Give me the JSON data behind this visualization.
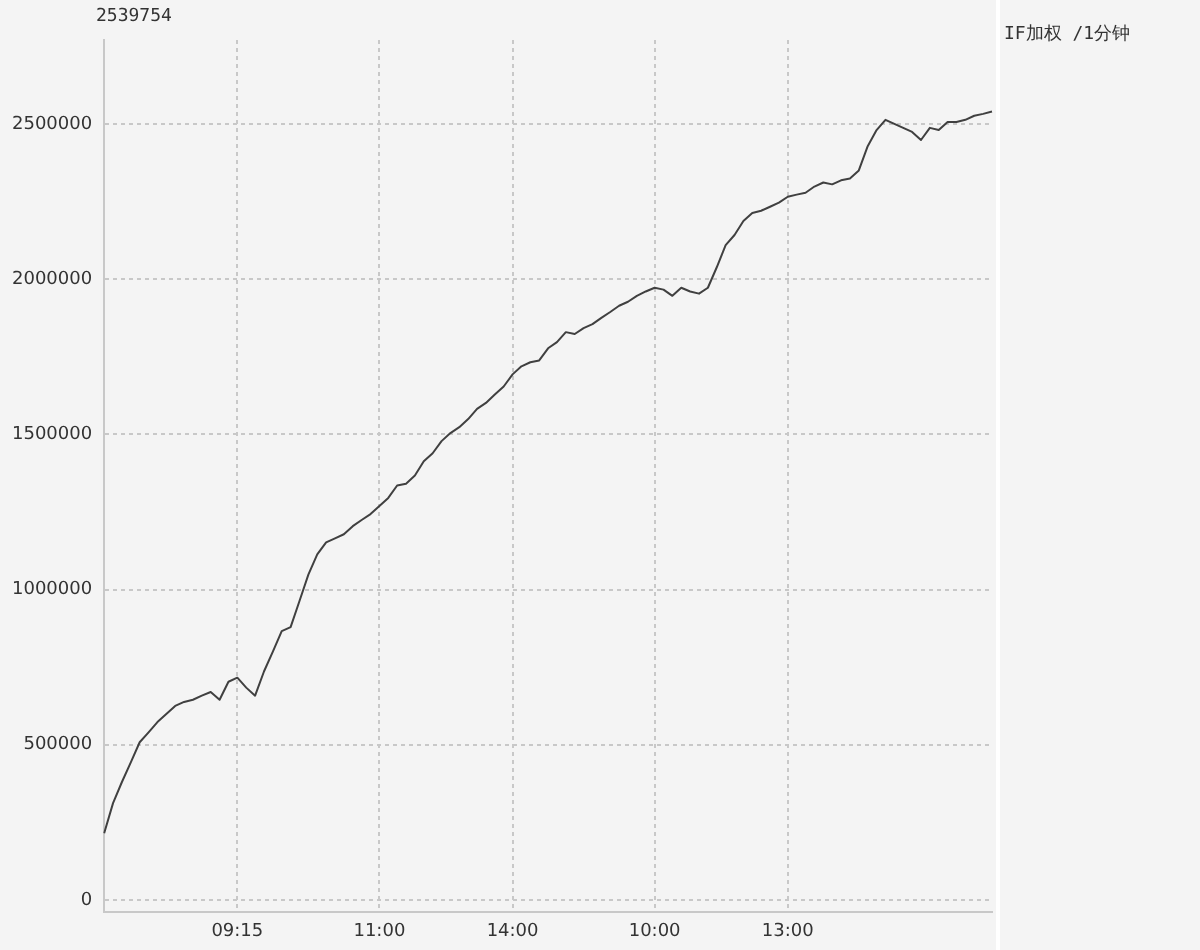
{
  "chart_data": {
    "type": "line",
    "categories": [
      null,
      null,
      null,
      null,
      null,
      null,
      null,
      null,
      null,
      null,
      null,
      null,
      null,
      null,
      null,
      "09:15",
      null,
      null,
      null,
      null,
      null,
      null,
      null,
      null,
      null,
      null,
      null,
      null,
      null,
      null,
      null,
      "11:00",
      null,
      null,
      null,
      null,
      null,
      null,
      null,
      null,
      null,
      null,
      null,
      null,
      null,
      null,
      "14:00",
      null,
      null,
      null,
      null,
      null,
      null,
      null,
      null,
      null,
      null,
      null,
      null,
      null,
      null,
      null,
      "10:00",
      null,
      null,
      null,
      null,
      null,
      null,
      null,
      null,
      null,
      null,
      null,
      null,
      null,
      null,
      "13:00",
      null,
      null,
      null,
      null,
      null,
      null,
      null,
      null,
      null,
      null,
      null,
      null,
      null,
      null,
      null,
      null,
      null,
      null,
      null,
      null,
      null,
      null,
      null
    ],
    "series": [
      {
        "color": "#404040",
        "values": [
          215000,
          312000,
          380000,
          443000,
          508000,
          540000,
          573000,
          599000,
          625000,
          638000,
          645000,
          658000,
          670000,
          645000,
          703000,
          716000,
          684000,
          658000,
          736000,
          800000,
          866000,
          879000,
          963000,
          1048000,
          1113000,
          1152000,
          1165000,
          1178000,
          1204000,
          1224000,
          1243000,
          1269000,
          1295000,
          1335000,
          1341000,
          1367000,
          1413000,
          1439000,
          1478000,
          1504000,
          1523000,
          1549000,
          1582000,
          1601000,
          1628000,
          1654000,
          1693000,
          1719000,
          1732000,
          1738000,
          1777000,
          1797000,
          1829000,
          1823000,
          1842000,
          1855000,
          1875000,
          1894000,
          1914000,
          1927000,
          1946000,
          1960000,
          1972000,
          1966000,
          1946000,
          1972000,
          1960000,
          1953000,
          1972000,
          2038000,
          2109000,
          2142000,
          2187000,
          2213000,
          2220000,
          2233000,
          2246000,
          2265000,
          2272000,
          2278000,
          2298000,
          2311000,
          2305000,
          2318000,
          2324000,
          2350000,
          2428000,
          2480000,
          2513000,
          2500000,
          2487000,
          2474000,
          2448000,
          2487000,
          2480000,
          2506000,
          2506000,
          2513000,
          2526000,
          2532000,
          2539754
        ]
      }
    ],
    "ylim": [
      -40000,
      2770000
    ],
    "yticks": [
      0,
      500000,
      1000000,
      1500000,
      2000000,
      2500000
    ],
    "grid": true,
    "line_style": "solid",
    "legend": false,
    "marker": "none",
    "annotations": [
      "2539754",
      "IF加权 /1分钟"
    ]
  }
}
